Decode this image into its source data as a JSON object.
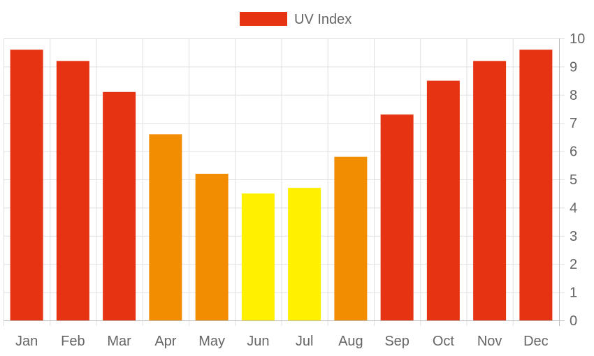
{
  "chart_data": {
    "type": "bar",
    "categories": [
      "Jan",
      "Feb",
      "Mar",
      "Apr",
      "May",
      "Jun",
      "Jul",
      "Aug",
      "Sep",
      "Oct",
      "Nov",
      "Dec"
    ],
    "series": [
      {
        "name": "UV Index",
        "values": [
          9.6,
          9.2,
          8.1,
          6.6,
          5.2,
          4.5,
          4.7,
          5.8,
          7.3,
          8.5,
          9.2,
          9.6
        ],
        "colors": [
          "#e63312",
          "#e63312",
          "#e63312",
          "#f28c00",
          "#f28c00",
          "#fff000",
          "#fff000",
          "#f28c00",
          "#e63312",
          "#e63312",
          "#e63312",
          "#e63312"
        ]
      }
    ],
    "legend": {
      "position": "top",
      "color": "#e63312"
    },
    "y_axis": {
      "position": "right",
      "ticks": [
        0,
        1,
        2,
        3,
        4,
        5,
        6,
        7,
        8,
        9,
        10
      ]
    },
    "ylim": [
      0,
      10
    ],
    "grid": true,
    "colors": {
      "grid": "#e0e0e0",
      "axis": "#bdbdbd",
      "text": "#666666"
    }
  }
}
